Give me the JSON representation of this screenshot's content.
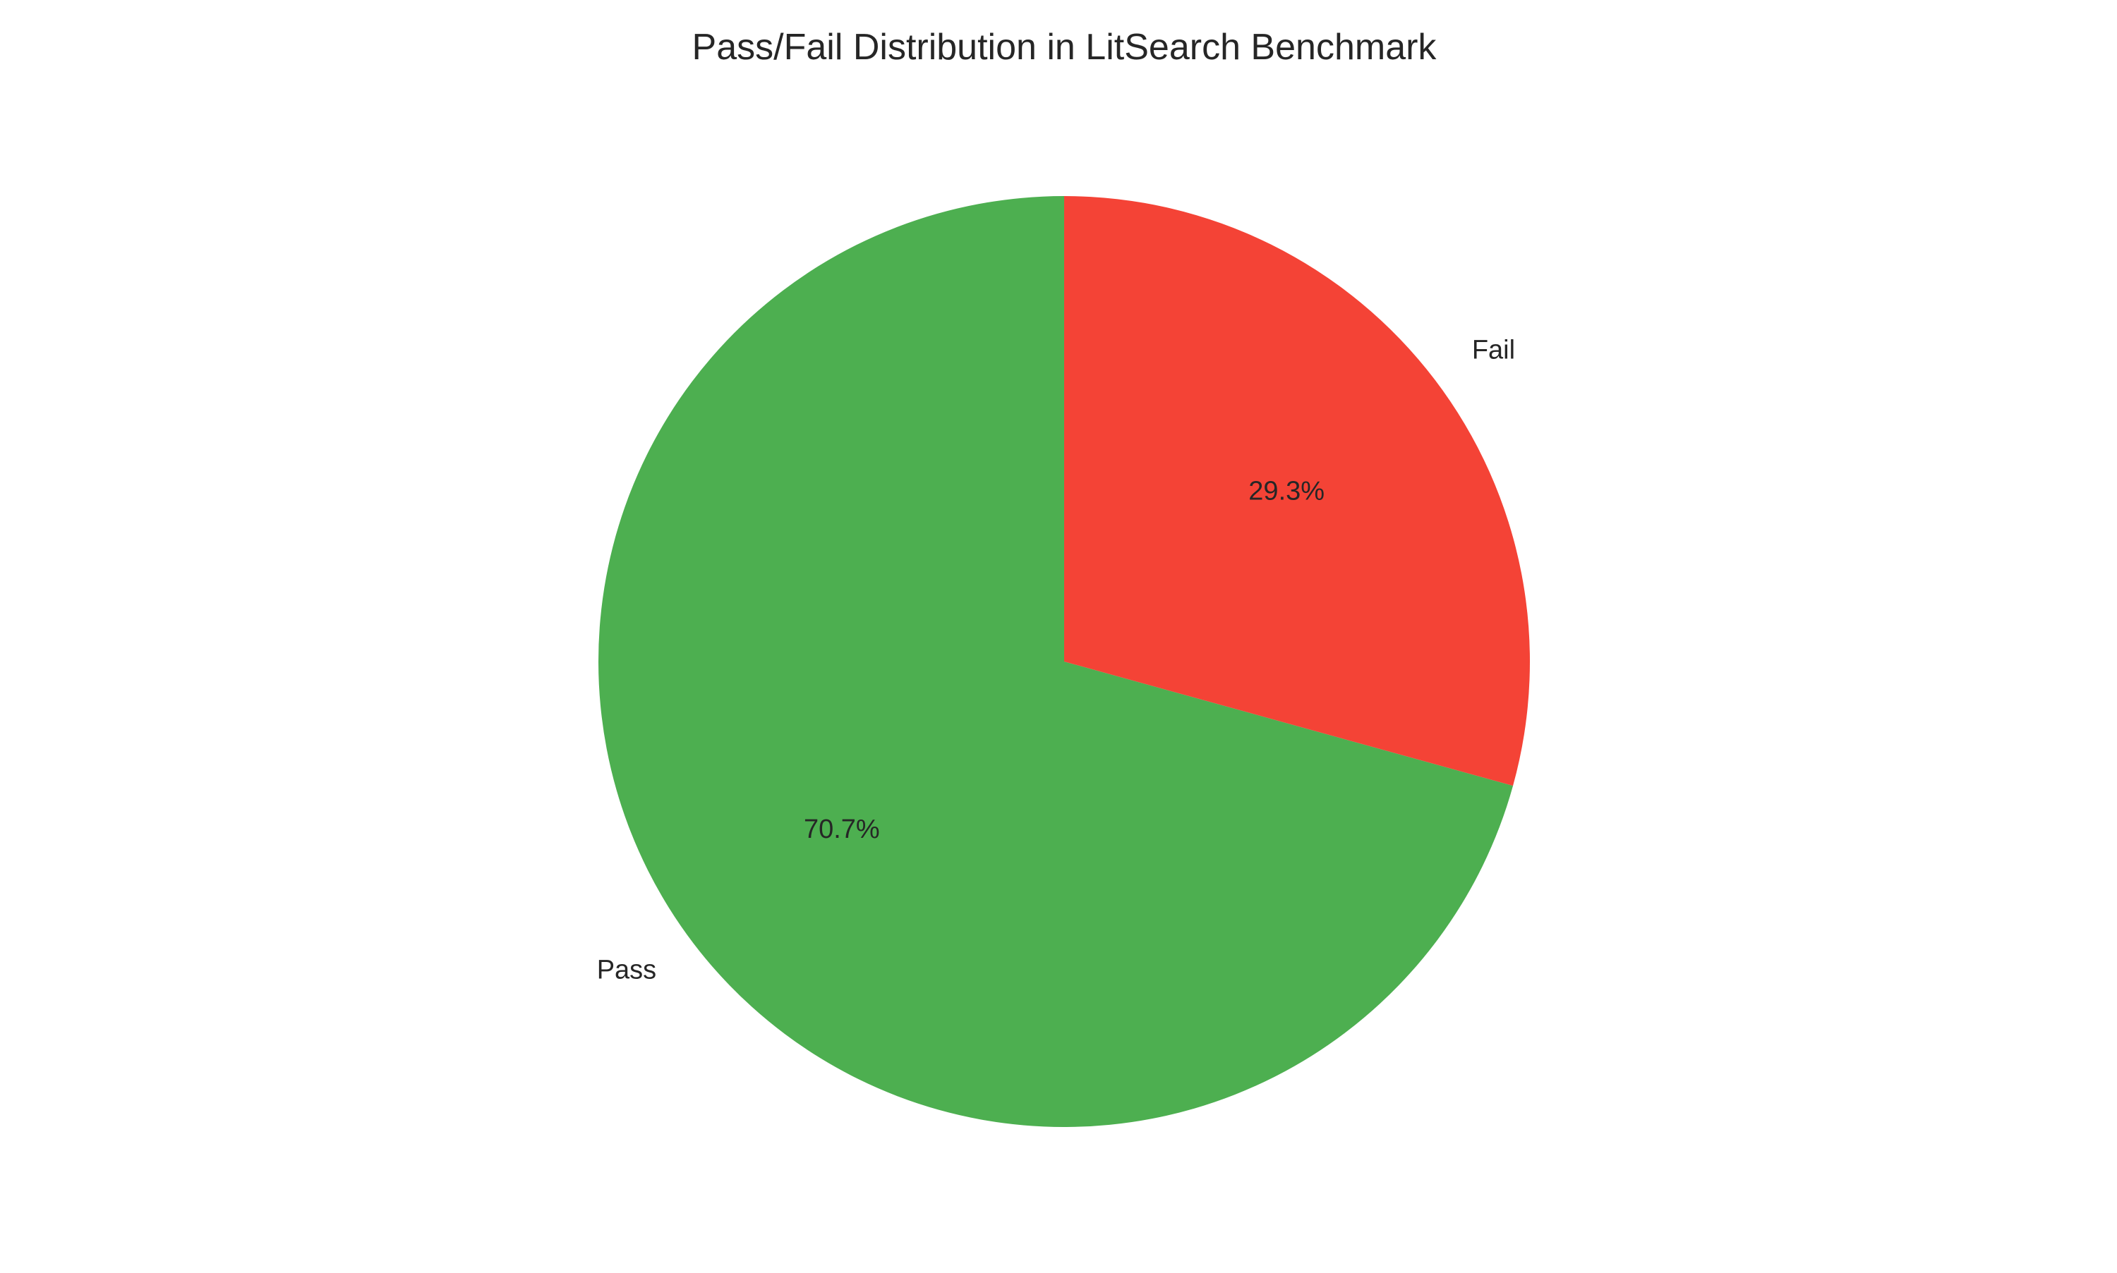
{
  "chart_data": {
    "type": "pie",
    "title": "Pass/Fail Distribution in LitSearch Benchmark",
    "labels": [
      "Pass",
      "Fail"
    ],
    "values": [
      70.7,
      29.3
    ],
    "percent_labels": [
      "70.7%",
      "29.3%"
    ],
    "colors": [
      "#4daf50",
      "#f44336"
    ],
    "start_angle_deg": 90,
    "direction": "counterclockwise",
    "legend": "none"
  }
}
